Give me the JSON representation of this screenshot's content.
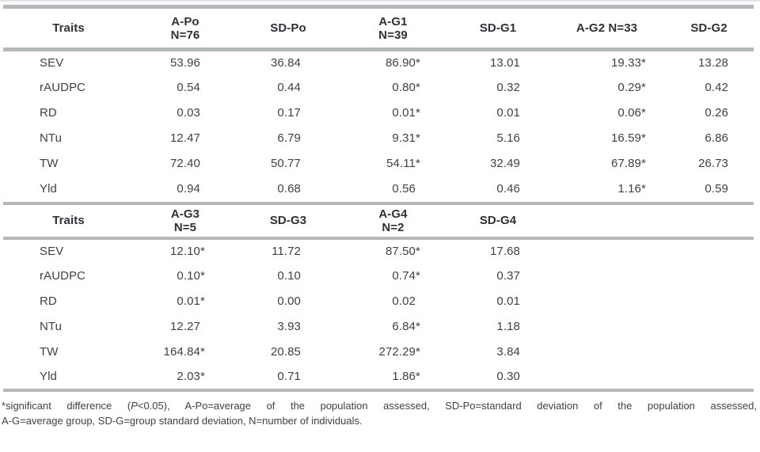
{
  "colors": {
    "rule": "#b5b8bb",
    "text": "#3e4145",
    "header_text": "#2e3135"
  },
  "table": {
    "sections": [
      {
        "headers": [
          {
            "line1": "Traits",
            "line2": ""
          },
          {
            "line1": "A-Po",
            "line2": "N=76"
          },
          {
            "line1": "SD-Po",
            "line2": ""
          },
          {
            "line1": "A-G1",
            "line2": "N=39"
          },
          {
            "line1": "SD-G1",
            "line2": ""
          },
          {
            "line1": "A-G2 N=33",
            "line2": ""
          },
          {
            "line1": "SD-G2",
            "line2": ""
          }
        ],
        "rows": [
          {
            "trait": "SEV",
            "values": [
              "53.96",
              "36.84",
              "86.90*",
              "13.01",
              "19.33*",
              "13.28"
            ]
          },
          {
            "trait": "rAUDPC",
            "values": [
              "0.54",
              "0.44",
              "0.80*",
              "0.32",
              "0.29*",
              "0.42"
            ]
          },
          {
            "trait": "RD",
            "values": [
              "0.03",
              "0.17",
              "0.01*",
              "0.01",
              "0.06*",
              "0.26"
            ]
          },
          {
            "trait": "NTu",
            "values": [
              "12.47",
              "6.79",
              "9.31*",
              "5.16",
              "16.59*",
              "6.86"
            ]
          },
          {
            "trait": "TW",
            "values": [
              "72.40",
              "50.77",
              "54.11*",
              "32.49",
              "67.89*",
              "26.73"
            ]
          },
          {
            "trait": "Yld",
            "values": [
              "0.94",
              "0.68",
              "0.56",
              "0.46",
              "1.16*",
              "0.59"
            ]
          }
        ]
      },
      {
        "headers": [
          {
            "line1": "Traits",
            "line2": ""
          },
          {
            "line1": "A-G3",
            "line2": "N=5"
          },
          {
            "line1": "SD-G3",
            "line2": ""
          },
          {
            "line1": "A-G4",
            "line2": "N=2"
          },
          {
            "line1": "SD-G4",
            "line2": ""
          },
          {
            "line1": "",
            "line2": ""
          },
          {
            "line1": "",
            "line2": ""
          }
        ],
        "rows": [
          {
            "trait": "SEV",
            "values": [
              "12.10*",
              "11.72",
              "87.50*",
              "17.68",
              "",
              ""
            ]
          },
          {
            "trait": "rAUDPC",
            "values": [
              "0.10*",
              "0.10",
              "0.74*",
              "0.37",
              "",
              ""
            ]
          },
          {
            "trait": "RD",
            "values": [
              "0.01*",
              "0.00",
              "0.02",
              "0.01",
              "",
              ""
            ]
          },
          {
            "trait": "NTu",
            "values": [
              "12.27",
              "3.93",
              "6.84*",
              "1.18",
              "",
              ""
            ]
          },
          {
            "trait": "TW",
            "values": [
              "164.84*",
              "20.85",
              "272.29*",
              "3.84",
              "",
              ""
            ]
          },
          {
            "trait": "Yld",
            "values": [
              "2.03*",
              "0.71",
              "1.86*",
              "0.30",
              "",
              ""
            ]
          }
        ]
      }
    ],
    "footnote": {
      "line1_part1": "*significant difference (",
      "line1_part2_italic": "P",
      "line1_part3": "<0.05), A-Po=average of the population assessed, SD-Po=standard deviation of the population assessed,",
      "line2": "A-G=average group, SD-G=group standard deviation, N=number of individuals."
    }
  }
}
